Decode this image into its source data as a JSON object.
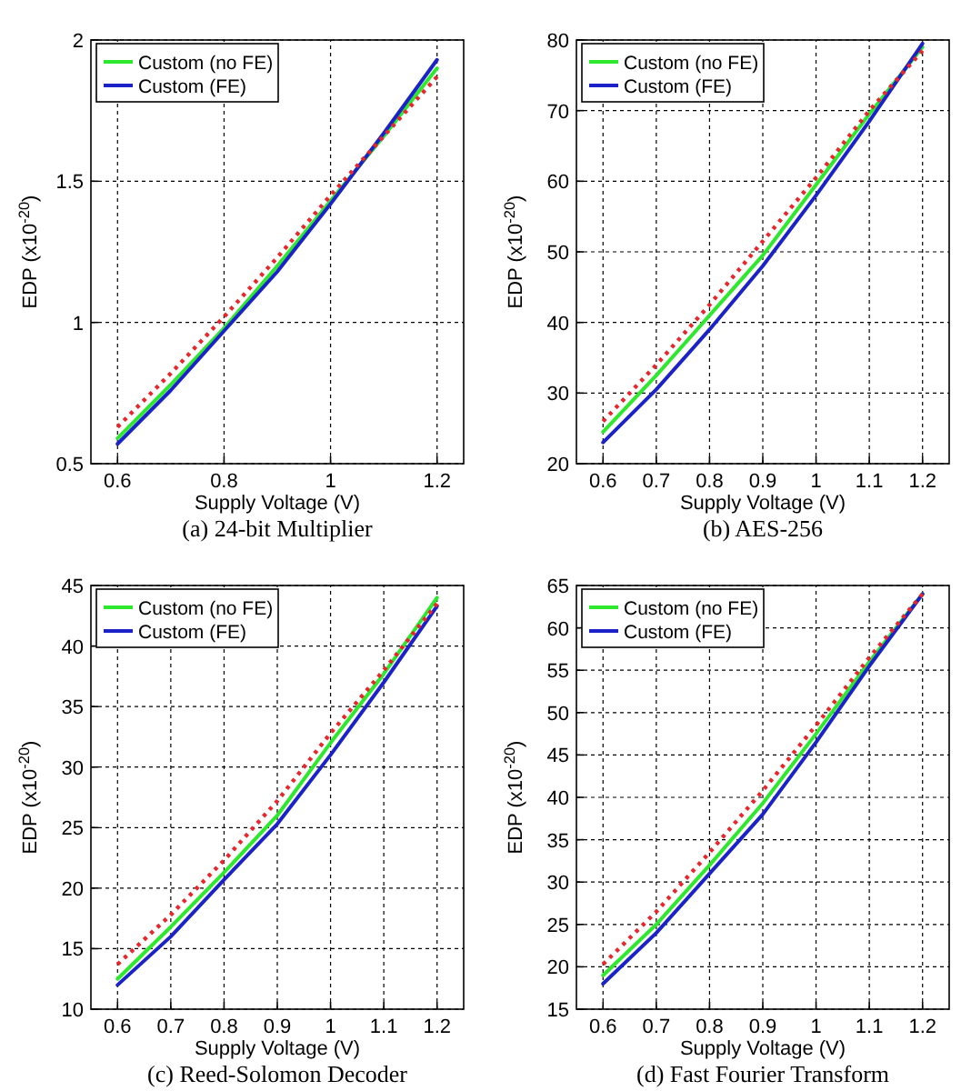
{
  "chart_data": [
    {
      "type": "line",
      "title": "(a) 24-bit Multiplier",
      "xlabel": "Supply Voltage (V)",
      "ylabel": "EDP (x10$^{-20}$)",
      "xlim": [
        0.55,
        1.25
      ],
      "xticks": [
        0.6,
        0.8,
        1,
        1.2
      ],
      "ylim": [
        0.5,
        2
      ],
      "yticks": [
        0.5,
        1,
        1.5,
        2
      ],
      "grid": true,
      "legend": "top left",
      "x": [
        0.6,
        0.7,
        0.8,
        0.9,
        1.0,
        1.1,
        1.2
      ],
      "series": [
        {
          "color": "#e8262b",
          "line_style": "dotted",
          "values": [
            0.63,
            0.82,
            1.02,
            1.23,
            1.45,
            1.66,
            1.87
          ]
        },
        {
          "name": "Custom (no FE)",
          "color": "#2ee82e",
          "line_style": "solid",
          "values": [
            0.59,
            0.78,
            0.98,
            1.2,
            1.43,
            1.66,
            1.9
          ]
        },
        {
          "name": "Custom (FE)",
          "color": "#1a22c8",
          "line_style": "solid",
          "values": [
            0.57,
            0.76,
            0.97,
            1.18,
            1.42,
            1.67,
            1.93
          ]
        }
      ]
    },
    {
      "type": "line",
      "title": "(b) AES-256",
      "xlabel": "Supply Voltage (V)",
      "ylabel": "EDP (x10$^{-20}$)",
      "xlim": [
        0.55,
        1.25
      ],
      "xticks": [
        0.6,
        0.7,
        0.8,
        0.9,
        1,
        1.1,
        1.2
      ],
      "ylim": [
        20,
        80
      ],
      "yticks": [
        20,
        30,
        40,
        50,
        60,
        70,
        80
      ],
      "grid": true,
      "legend": "top left",
      "x": [
        0.6,
        0.7,
        0.8,
        0.9,
        1.0,
        1.1,
        1.2
      ],
      "series": [
        {
          "color": "#e8262b",
          "line_style": "dotted",
          "values": [
            26,
            34,
            42.5,
            51.5,
            60.5,
            70,
            78.5
          ]
        },
        {
          "name": "Custom (no FE)",
          "color": "#2ee82e",
          "line_style": "solid",
          "values": [
            24.5,
            32.5,
            41,
            49.5,
            59.5,
            69.5,
            79
          ]
        },
        {
          "name": "Custom (FE)",
          "color": "#1a22c8",
          "line_style": "solid",
          "values": [
            23,
            30.5,
            39,
            48,
            58,
            68.5,
            79.5
          ]
        }
      ]
    },
    {
      "type": "line",
      "title": "(c) Reed-Solomon Decoder",
      "xlabel": "Supply Voltage (V)",
      "ylabel": "EDP (x10$^{-20}$)",
      "xlim": [
        0.55,
        1.25
      ],
      "xticks": [
        0.6,
        0.7,
        0.8,
        0.9,
        1,
        1.1,
        1.2
      ],
      "ylim": [
        10,
        45
      ],
      "yticks": [
        10,
        15,
        20,
        25,
        30,
        35,
        40,
        45
      ],
      "grid": true,
      "legend": "top left",
      "x": [
        0.6,
        0.7,
        0.8,
        0.9,
        1.0,
        1.1,
        1.2
      ],
      "series": [
        {
          "color": "#e8262b",
          "line_style": "dotted",
          "values": [
            13.7,
            17.8,
            22.3,
            27.2,
            32.8,
            38,
            43.5
          ]
        },
        {
          "name": "Custom (no FE)",
          "color": "#2ee82e",
          "line_style": "solid",
          "values": [
            12.5,
            16.8,
            21.3,
            26,
            32,
            37.7,
            44
          ]
        },
        {
          "name": "Custom (FE)",
          "color": "#1a22c8",
          "line_style": "solid",
          "values": [
            12,
            16,
            20.7,
            25.3,
            31,
            37,
            43.3
          ]
        }
      ]
    },
    {
      "type": "line",
      "title": "(d) Fast Fourier Transform",
      "xlabel": "Supply Voltage (V)",
      "ylabel": "EDP (x10$^{-20}$)",
      "xlim": [
        0.55,
        1.25
      ],
      "xticks": [
        0.6,
        0.7,
        0.8,
        0.9,
        1,
        1.1,
        1.2
      ],
      "ylim": [
        15,
        65
      ],
      "yticks": [
        15,
        20,
        25,
        30,
        35,
        40,
        45,
        50,
        55,
        60,
        65
      ],
      "grid": true,
      "legend": "top left",
      "x": [
        0.6,
        0.7,
        0.8,
        0.9,
        1.0,
        1.1,
        1.2
      ],
      "series": [
        {
          "color": "#e8262b",
          "line_style": "dotted",
          "values": [
            20.3,
            26.5,
            33.5,
            40.8,
            48.5,
            56.5,
            64
          ]
        },
        {
          "name": "Custom (no FE)",
          "color": "#2ee82e",
          "line_style": "solid",
          "values": [
            19,
            25,
            32,
            39.3,
            47.5,
            56,
            64
          ]
        },
        {
          "name": "Custom (FE)",
          "color": "#1a22c8",
          "line_style": "solid",
          "values": [
            18,
            24,
            31,
            38,
            46.5,
            55.5,
            64
          ]
        }
      ]
    }
  ]
}
